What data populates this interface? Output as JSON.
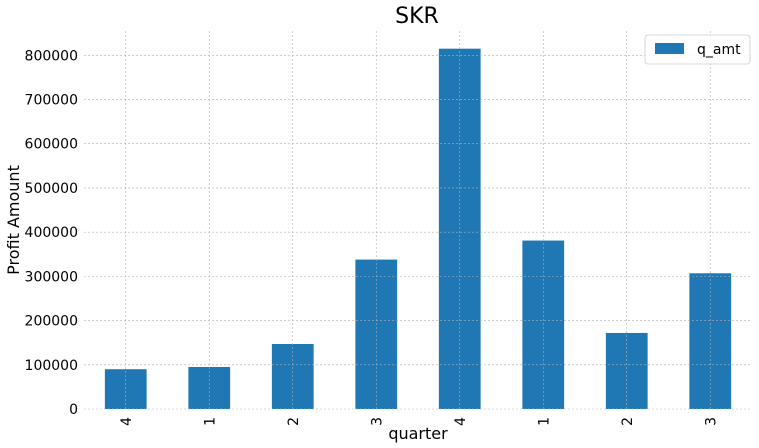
{
  "chart_data": {
    "type": "bar",
    "title": "SKR",
    "xlabel": "quarter",
    "ylabel": "Profit Amount",
    "categories": [
      "4",
      "1",
      "2",
      "3",
      "4",
      "1",
      "2",
      "3"
    ],
    "series": [
      {
        "name": "q_amt",
        "values": [
          90000,
          95000,
          147000,
          338000,
          815000,
          381000,
          172000,
          307000
        ]
      }
    ],
    "ylim": [
      0,
      855000
    ],
    "yticks": [
      0,
      100000,
      200000,
      300000,
      400000,
      500000,
      600000,
      700000,
      800000
    ],
    "ytick_labels": [
      "0",
      "100000",
      "200000",
      "300000",
      "400000",
      "500000",
      "600000",
      "700000",
      "800000"
    ],
    "grid": true,
    "legend_position": "top-right",
    "bar_color": "#1f77b4"
  }
}
